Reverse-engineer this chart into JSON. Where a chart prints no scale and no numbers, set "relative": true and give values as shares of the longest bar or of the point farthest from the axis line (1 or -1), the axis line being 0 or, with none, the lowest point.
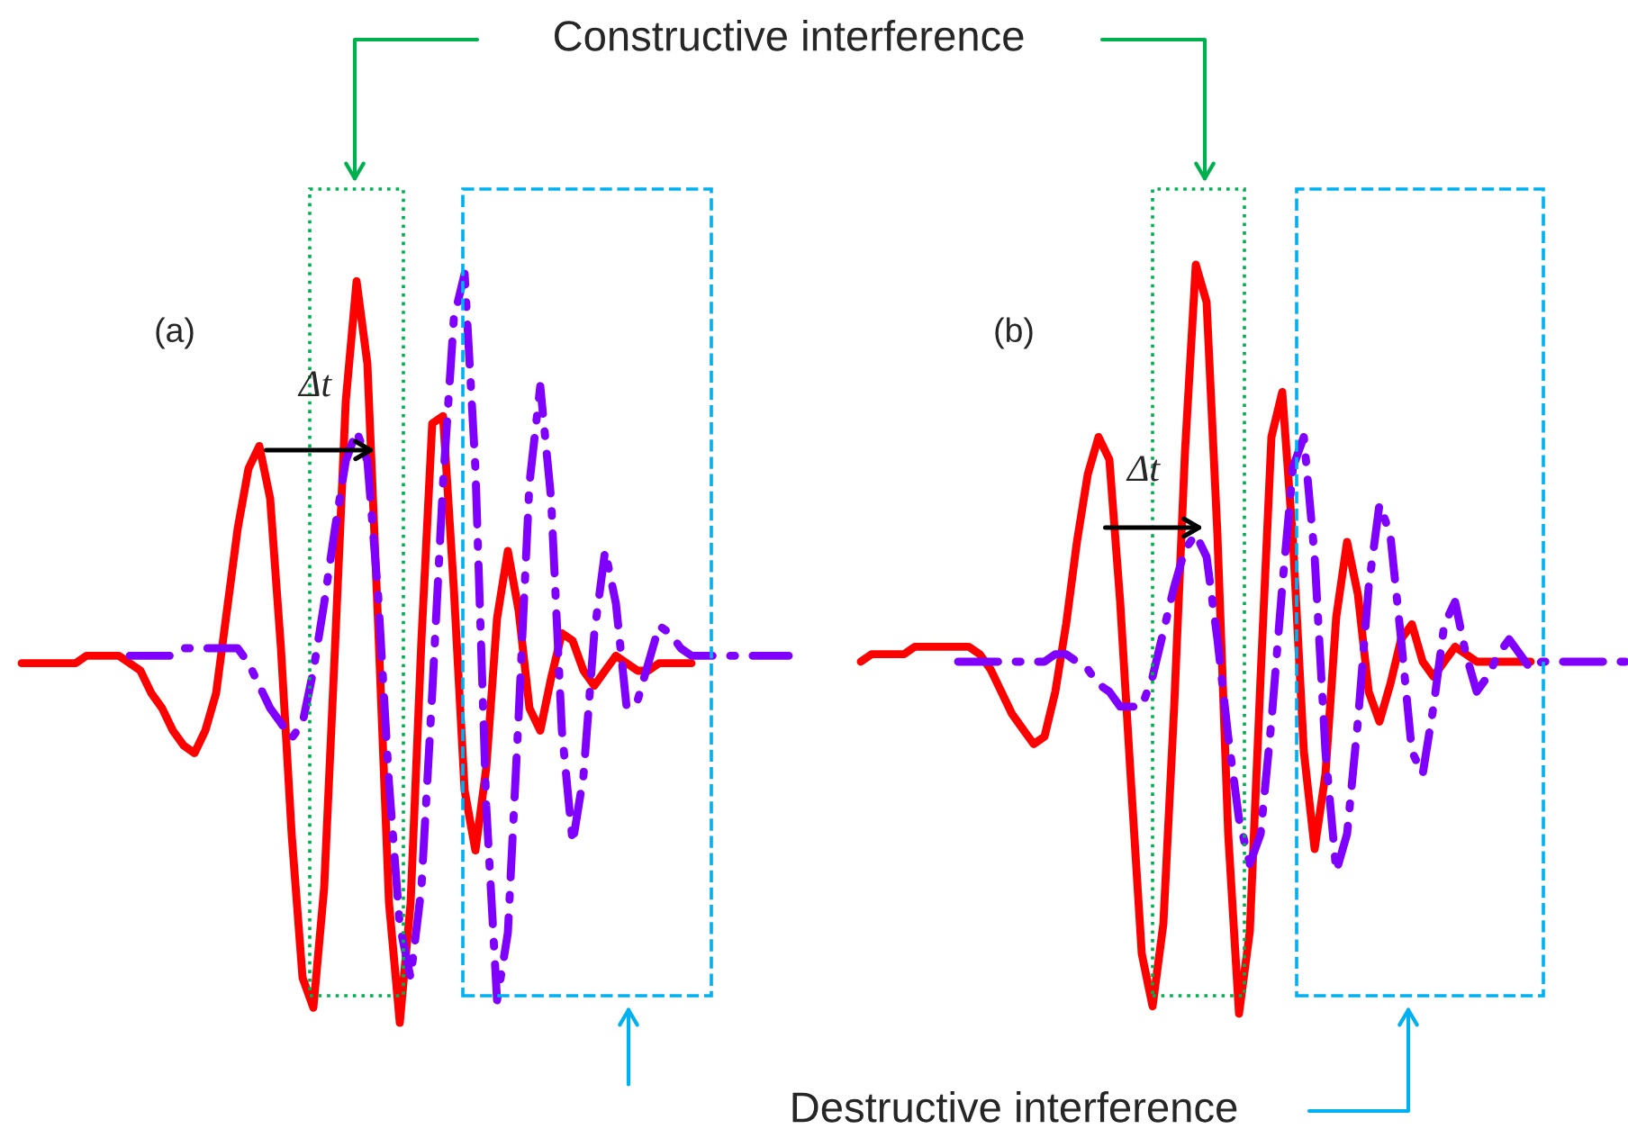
{
  "chart_data": [
    {
      "type": "line",
      "relative": true,
      "categories": [
        null,
        null,
        null,
        null,
        null,
        null,
        null,
        null,
        null,
        null,
        null,
        null,
        null,
        null,
        null,
        null,
        null,
        null,
        null,
        null,
        null,
        null,
        null,
        null,
        null,
        null,
        null,
        null,
        null,
        null,
        null,
        null,
        null,
        null,
        null,
        null,
        null,
        null,
        null,
        null,
        null,
        null,
        null,
        null,
        null,
        null,
        null,
        null,
        null,
        null,
        null,
        null,
        null,
        null,
        null,
        null,
        null,
        null,
        null,
        null,
        null,
        null,
        null,
        null,
        null,
        null,
        null,
        null,
        null,
        null,
        null,
        null
      ],
      "series": [
        {
          "color": "#ff0000",
          "line_style": "solid",
          "values": [
            0.48,
            0.48,
            0.48,
            0.48,
            0.48,
            0.48,
            0.49,
            0.49,
            0.49,
            0.49,
            0.48,
            0.47,
            0.44,
            0.42,
            0.39,
            0.37,
            0.36,
            0.39,
            0.44,
            0.55,
            0.66,
            0.74,
            0.77,
            0.7,
            0.5,
            0.25,
            0.06,
            0.02,
            0.18,
            0.5,
            0.83,
            0.99,
            0.88,
            0.53,
            0.16,
            0,
            0.16,
            0.51,
            0.8,
            0.81,
            0.58,
            0.31,
            0.23,
            0.34,
            0.54,
            0.63,
            0.55,
            0.42,
            0.39,
            0.46,
            0.52,
            0.51,
            0.47,
            0.45,
            0.47,
            0.49,
            0.48,
            0.47,
            0.47,
            0.48,
            0.48,
            0.48,
            0.48,
            null,
            null,
            null,
            null,
            null,
            null,
            null,
            null,
            null
          ]
        },
        {
          "color": "#8000ff",
          "line_style": "dashdot",
          "values": [
            null,
            null,
            null,
            null,
            null,
            null,
            null,
            null,
            null,
            null,
            0.49,
            0.49,
            0.49,
            0.49,
            0.49,
            0.5,
            0.5,
            0.5,
            0.5,
            0.5,
            0.5,
            0.48,
            0.45,
            0.42,
            0.4,
            0.38,
            0.4,
            0.47,
            0.56,
            0.66,
            0.75,
            0.79,
            0.75,
            0.57,
            0.32,
            0.13,
            0.06,
            0.18,
            0.44,
            0.72,
            0.94,
            1.0,
            0.74,
            0.29,
            0.03,
            0.12,
            0.41,
            0.72,
            0.85,
            0.7,
            0.39,
            0.24,
            0.33,
            0.52,
            0.63,
            0.56,
            0.42,
            0.43,
            0.48,
            0.53,
            0.52,
            0.5,
            0.49,
            0.49,
            0.49,
            0.49,
            0.49,
            0.49,
            0.49,
            0.49,
            0.49,
            0.49
          ]
        }
      ],
      "annotations": [
        "(a)",
        "Δt",
        "Constructive interference",
        "Destructive interference"
      ]
    },
    {
      "type": "line",
      "relative": true,
      "categories": [
        null,
        null,
        null,
        null,
        null,
        null,
        null,
        null,
        null,
        null,
        null,
        null,
        null,
        null,
        null,
        null,
        null,
        null,
        null,
        null,
        null,
        null,
        null,
        null,
        null,
        null,
        null,
        null,
        null,
        null,
        null,
        null,
        null,
        null,
        null,
        null,
        null,
        null,
        null,
        null,
        null,
        null,
        null,
        null,
        null,
        null,
        null,
        null,
        null,
        null,
        null,
        null,
        null,
        null,
        null,
        null,
        null,
        null,
        null,
        null,
        null,
        null,
        null,
        null,
        null,
        null,
        null,
        null,
        null,
        null,
        null,
        null
      ],
      "series": [
        {
          "color": "#ff0000",
          "line_style": "solid",
          "values": [
            0.47,
            0.48,
            0.48,
            0.48,
            0.48,
            0.49,
            0.49,
            0.49,
            0.49,
            0.49,
            0.49,
            0.48,
            0.46,
            0.43,
            0.4,
            0.38,
            0.36,
            0.37,
            0.43,
            0.52,
            0.63,
            0.72,
            0.77,
            0.74,
            0.55,
            0.31,
            0.08,
            0.01,
            0.12,
            0.41,
            0.75,
            1.0,
            0.95,
            0.64,
            0.24,
            0,
            0.11,
            0.45,
            0.77,
            0.83,
            0.63,
            0.35,
            0.22,
            0.32,
            0.53,
            0.63,
            0.56,
            0.43,
            0.39,
            0.44,
            0.5,
            0.52,
            0.47,
            0.45,
            0.47,
            0.49,
            0.48,
            0.47,
            0.47,
            0.47,
            0.47,
            0.47,
            0.47,
            null,
            null,
            null,
            null,
            null,
            null,
            null,
            null,
            null
          ]
        },
        {
          "color": "#8000ff",
          "line_style": "dashdot",
          "values": [
            null,
            null,
            null,
            null,
            null,
            null,
            null,
            null,
            null,
            0.47,
            0.47,
            0.47,
            0.47,
            0.47,
            0.47,
            0.47,
            0.47,
            0.47,
            0.48,
            0.48,
            0.47,
            0.46,
            0.44,
            0.43,
            0.41,
            0.41,
            0.41,
            0.45,
            0.51,
            0.57,
            0.62,
            0.64,
            0.61,
            0.5,
            0.37,
            0.26,
            0.2,
            0.24,
            0.39,
            0.57,
            0.73,
            0.77,
            0.61,
            0.35,
            0.19,
            0.24,
            0.39,
            0.57,
            0.68,
            0.64,
            0.5,
            0.35,
            0.32,
            0.41,
            0.52,
            0.55,
            0.48,
            0.43,
            0.45,
            0.48,
            0.5,
            0.48,
            0.46,
            0.47,
            0.47,
            0.47,
            0.47,
            0.47,
            0.47,
            0.47,
            0.47,
            0.47
          ]
        }
      ],
      "annotations": [
        "(b)",
        "Δt"
      ]
    }
  ]
}
